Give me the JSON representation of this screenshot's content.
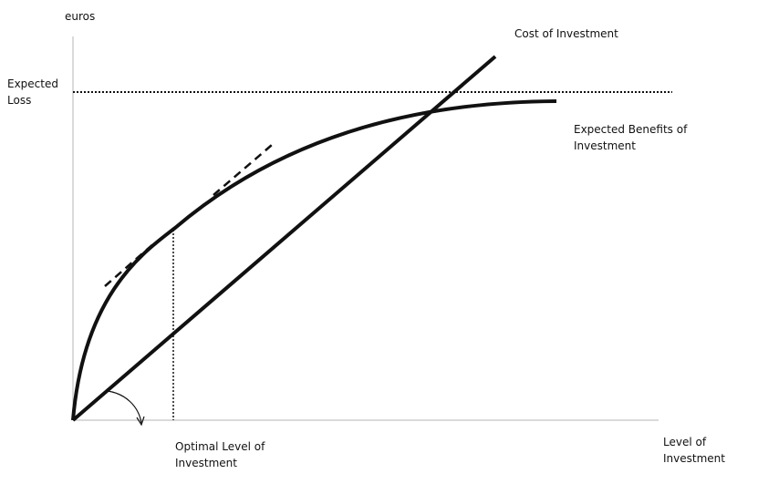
{
  "labels": {
    "y_axis": "euros",
    "expected_loss_line1": "Expected",
    "expected_loss_line2": "Loss",
    "cost_of_investment": "Cost of Investment",
    "benefits_line1": "Expected Benefits of",
    "benefits_line2": "Investment",
    "optimal_line1": "Optimal Level of",
    "optimal_line2": "Investment",
    "x_axis_line1": "Level of",
    "x_axis_line2": "Investment"
  },
  "colors": {
    "ink": "#111111",
    "background": "#ffffff"
  }
}
